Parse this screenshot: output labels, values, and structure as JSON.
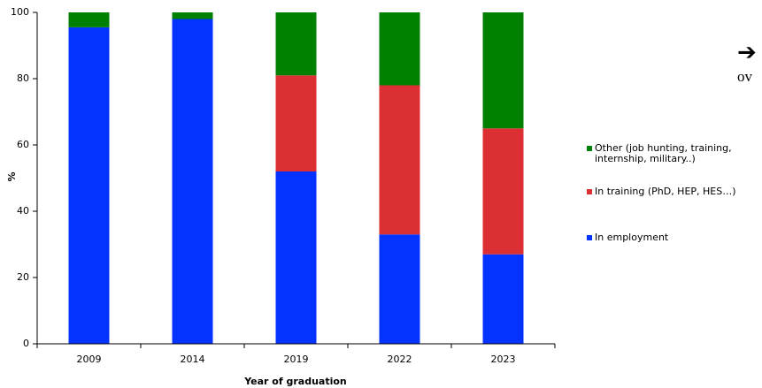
{
  "chart_data": {
    "type": "stacked_bar",
    "categories": [
      "2009",
      "2014",
      "2019",
      "2022",
      "2023"
    ],
    "series": [
      {
        "name": "In employment",
        "color": "#0433ff",
        "values": [
          95.5,
          98,
          52,
          33,
          27
        ]
      },
      {
        "name": "In training (PhD, HEP, HES…)",
        "color": "#dc2f33",
        "values": [
          0,
          0,
          29,
          45,
          38
        ]
      },
      {
        "name": "Other (job hunting, training, internship, military..)",
        "color": "#028002",
        "values": [
          4.5,
          2,
          19,
          22,
          35
        ]
      }
    ],
    "ylabel": "%",
    "xlabel": "Year of graduation",
    "ylim": [
      0,
      100
    ],
    "yticks": [
      0,
      20,
      40,
      60,
      80,
      100
    ],
    "legend": "right",
    "annotations": [
      "➔",
      "ov"
    ]
  }
}
